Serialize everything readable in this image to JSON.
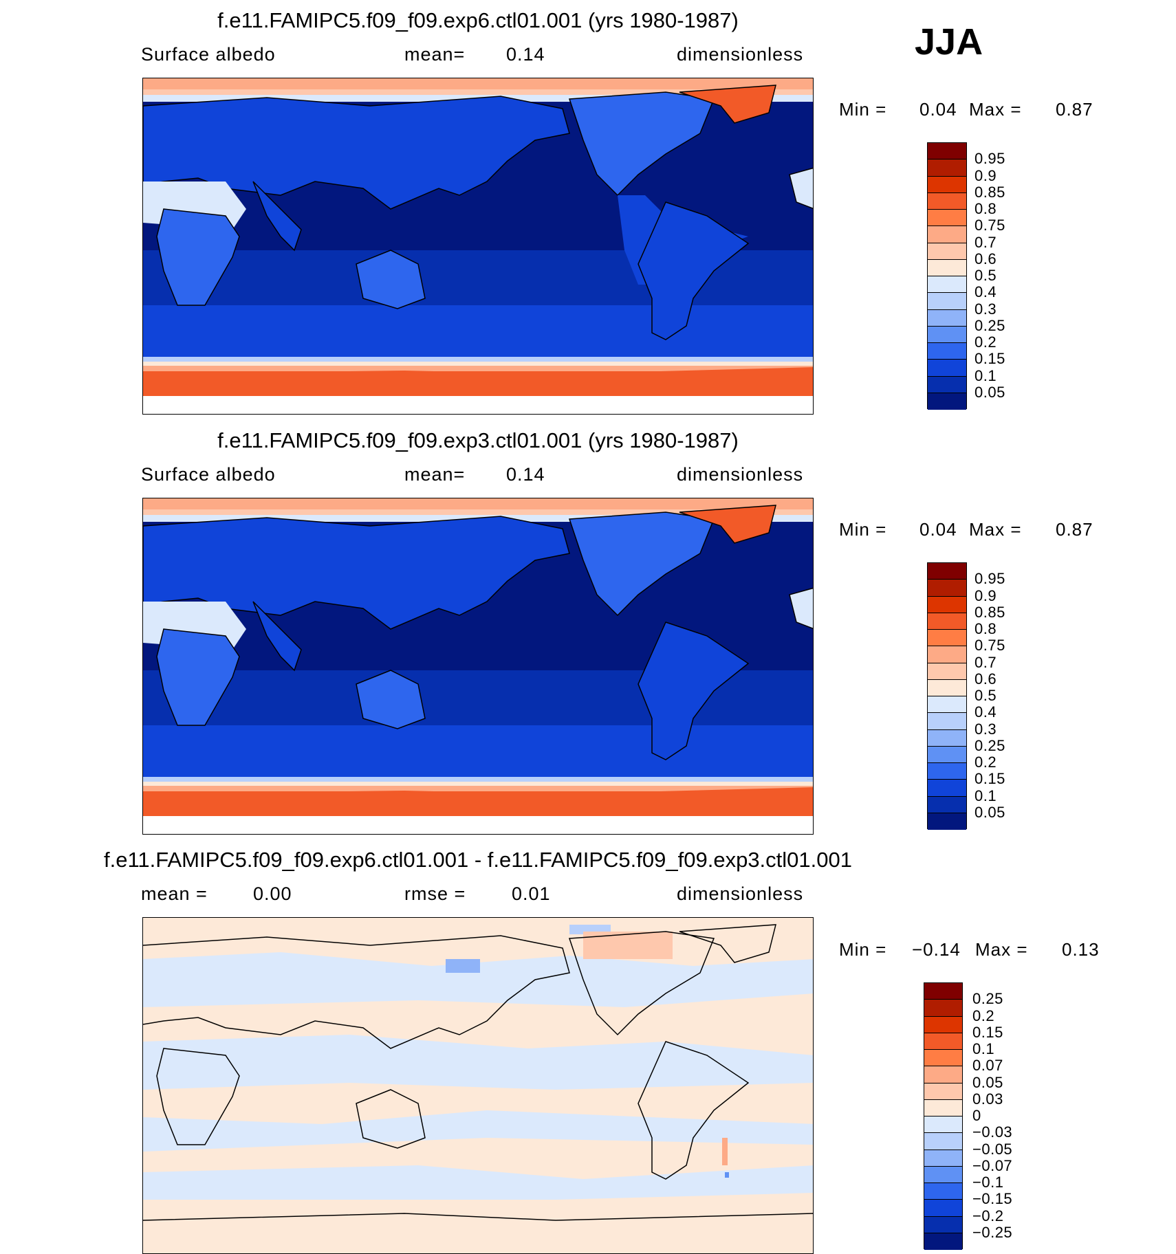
{
  "season": "JJA",
  "panels": [
    {
      "title": "f.e11.FAMIPC5.f09_f09.exp6.ctl01.001 (yrs 1980-1987)",
      "left_text": "Surface albedo",
      "mid_text": "mean=",
      "mid_value": "0.14",
      "right_text": "dimensionless",
      "min_label": "Min =",
      "min_value": "0.04",
      "max_label": "Max =",
      "max_value": "0.87",
      "levels": [
        "0.95",
        "0.9",
        "0.85",
        "0.8",
        "0.75",
        "0.7",
        "0.6",
        "0.5",
        "0.4",
        "0.3",
        "0.25",
        "0.2",
        "0.15",
        "0.1",
        "0.05"
      ],
      "colors": [
        "#7f0000",
        "#b01d00",
        "#dd3500",
        "#f25a28",
        "#ff7d44",
        "#fdaa86",
        "#fec8ad",
        "#fde9d8",
        "#dbe9fc",
        "#b8d0fb",
        "#8fb3f8",
        "#5f91f4",
        "#2e66ee",
        "#1044d9",
        "#062fae",
        "#02177e"
      ]
    },
    {
      "title": "f.e11.FAMIPC5.f09_f09.exp3.ctl01.001 (yrs 1980-1987)",
      "left_text": "Surface albedo",
      "mid_text": "mean=",
      "mid_value": "0.14",
      "right_text": "dimensionless",
      "min_label": "Min =",
      "min_value": "0.04",
      "max_label": "Max =",
      "max_value": "0.87",
      "levels": [
        "0.95",
        "0.9",
        "0.85",
        "0.8",
        "0.75",
        "0.7",
        "0.6",
        "0.5",
        "0.4",
        "0.3",
        "0.25",
        "0.2",
        "0.15",
        "0.1",
        "0.05"
      ],
      "colors": [
        "#7f0000",
        "#b01d00",
        "#dd3500",
        "#f25a28",
        "#ff7d44",
        "#fdaa86",
        "#fec8ad",
        "#fde9d8",
        "#dbe9fc",
        "#b8d0fb",
        "#8fb3f8",
        "#5f91f4",
        "#2e66ee",
        "#1044d9",
        "#062fae",
        "#02177e"
      ]
    },
    {
      "title": "f.e11.FAMIPC5.f09_f09.exp6.ctl01.001 - f.e11.FAMIPC5.f09_f09.exp3.ctl01.001",
      "left_text": "mean =",
      "left_value": "0.00",
      "mid_text": "rmse =",
      "mid_value": "0.01",
      "right_text": "dimensionless",
      "min_label": "Min =",
      "min_value": "−0.14",
      "max_label": "Max =",
      "max_value": "0.13",
      "levels": [
        "0.25",
        "0.2",
        "0.15",
        "0.1",
        "0.07",
        "0.05",
        "0.03",
        "0",
        "−0.03",
        "−0.05",
        "−0.07",
        "−0.1",
        "−0.15",
        "−0.2",
        "−0.25"
      ],
      "colors": [
        "#7f0000",
        "#b01d00",
        "#dd3500",
        "#f25a28",
        "#ff7d44",
        "#fdaa86",
        "#fec8ad",
        "#fde9d8",
        "#dbe9fc",
        "#b8d0fb",
        "#8fb3f8",
        "#5f91f4",
        "#2e66ee",
        "#1044d9",
        "#062fae",
        "#02177e"
      ]
    }
  ]
}
